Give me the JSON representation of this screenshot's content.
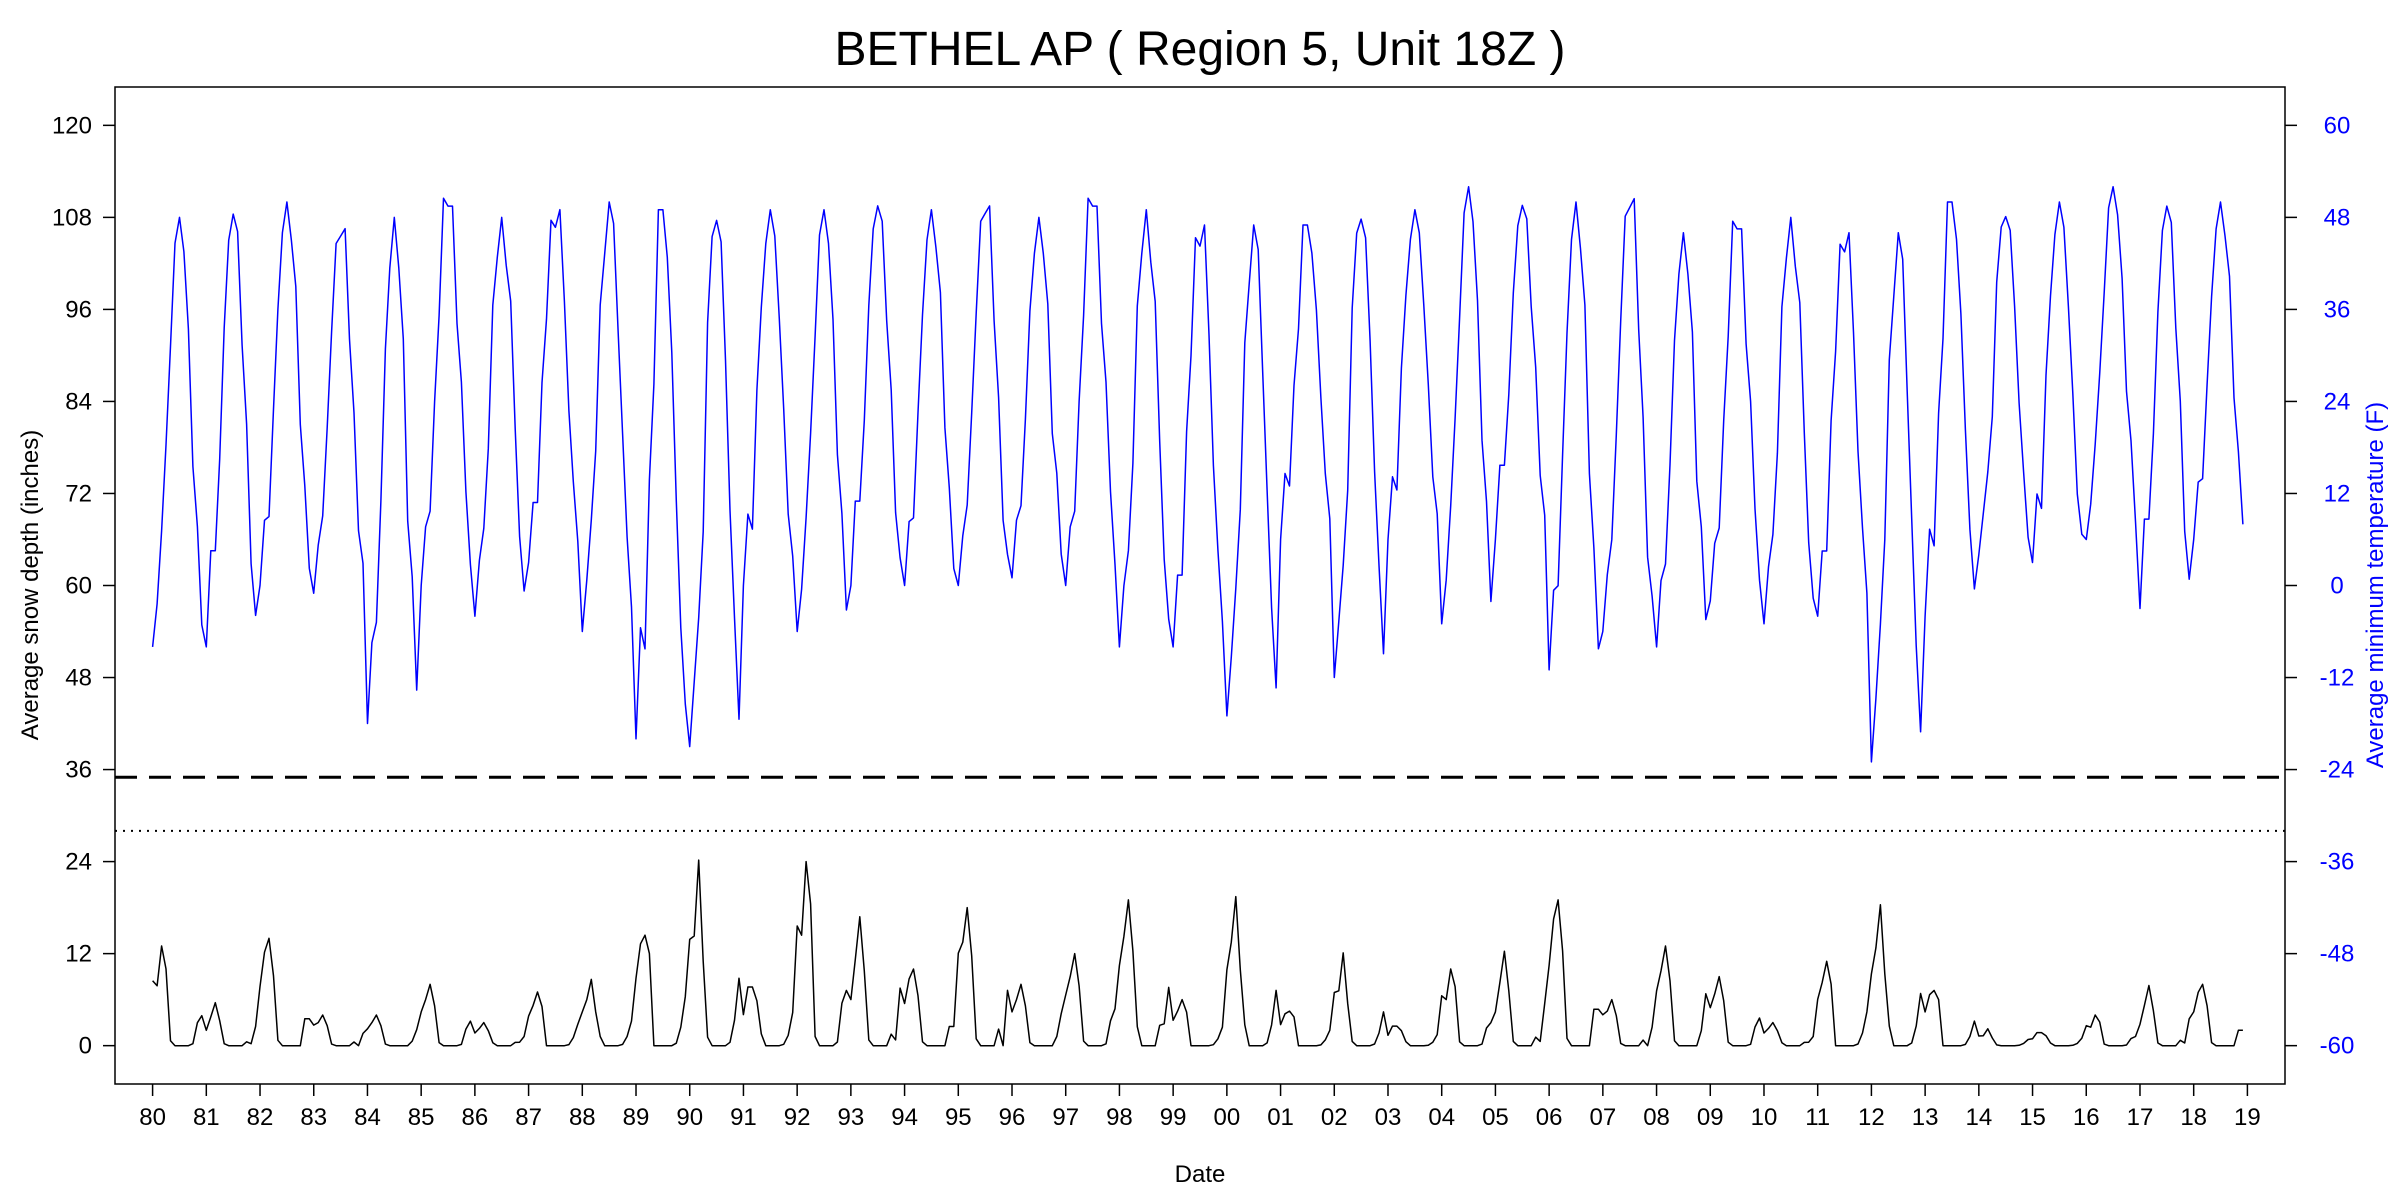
{
  "chart_data": {
    "type": "line",
    "title": "BETHEL AP ( Region 5, Unit 18Z )",
    "xlabel": "Date",
    "ylabel_left": "Average snow depth (inches)",
    "ylabel_right": "Average minimum temperature (F)",
    "x_range": [
      1980.0,
      2018.9
    ],
    "x_tick_values": [
      1980,
      1981,
      1982,
      1983,
      1984,
      1985,
      1986,
      1987,
      1988,
      1989,
      1990,
      1991,
      1992,
      1993,
      1994,
      1995,
      1996,
      1997,
      1998,
      1999,
      2000,
      2001,
      2002,
      2003,
      2004,
      2005,
      2006,
      2007,
      2008,
      2009,
      2010,
      2011,
      2012,
      2013,
      2014,
      2015,
      2016,
      2017,
      2018,
      2019
    ],
    "x_tick_labels": [
      "80",
      "81",
      "82",
      "83",
      "84",
      "85",
      "86",
      "87",
      "88",
      "89",
      "90",
      "91",
      "92",
      "93",
      "94",
      "95",
      "96",
      "97",
      "98",
      "99",
      "00",
      "01",
      "02",
      "03",
      "04",
      "05",
      "06",
      "07",
      "08",
      "09",
      "10",
      "11",
      "12",
      "13",
      "14",
      "15",
      "16",
      "17",
      "18",
      "19"
    ],
    "y_left_range": [
      -5,
      125
    ],
    "y_left_ticks": [
      0,
      12,
      24,
      36,
      48,
      60,
      72,
      84,
      96,
      108,
      120
    ],
    "y_right_range": [
      -65,
      65
    ],
    "y_right_ticks": [
      -60,
      -48,
      -36,
      -24,
      -12,
      0,
      12,
      24,
      36,
      48,
      60
    ],
    "reference_lines": [
      {
        "axis": "left",
        "value": 35,
        "style": "dashed",
        "color": "#000000"
      },
      {
        "axis": "left",
        "value": 28,
        "style": "dotted",
        "color": "#000000"
      }
    ],
    "series": [
      {
        "axis": "right",
        "color": "#0000ff",
        "annual_max": [
          48,
          49,
          50,
          47,
          48,
          51,
          48,
          49,
          50,
          49,
          49,
          49,
          49,
          50,
          49,
          50,
          48,
          51,
          49,
          47,
          47,
          47,
          49,
          49,
          52,
          50,
          50,
          51,
          46,
          48,
          48,
          46,
          46,
          50,
          49,
          50,
          52,
          50,
          50
        ],
        "annual_min": [
          -8,
          -8,
          0,
          -1,
          -18,
          0,
          -4,
          3,
          -6,
          -20,
          -21,
          0,
          -6,
          0,
          0,
          0,
          1,
          0,
          -8,
          -8,
          -17,
          6,
          -12,
          6,
          -5,
          6,
          -11,
          -6,
          -8,
          -2,
          -5,
          -4,
          -23,
          -4,
          4,
          3,
          6,
          -3,
          6
        ],
        "x": [],
        "y": []
      },
      {
        "axis": "left",
        "color": "#000000",
        "annual_peak": [
          13,
          5,
          14,
          4,
          4,
          8,
          3,
          7,
          8,
          16,
          22,
          9,
          24,
          15,
          10,
          18,
          8,
          12,
          19,
          6,
          18,
          5,
          11,
          3,
          10,
          11,
          19,
          6,
          13,
          9,
          3,
          11,
          17,
          8,
          2,
          2,
          4,
          7,
          8
        ],
        "x": [],
        "y": []
      }
    ]
  }
}
